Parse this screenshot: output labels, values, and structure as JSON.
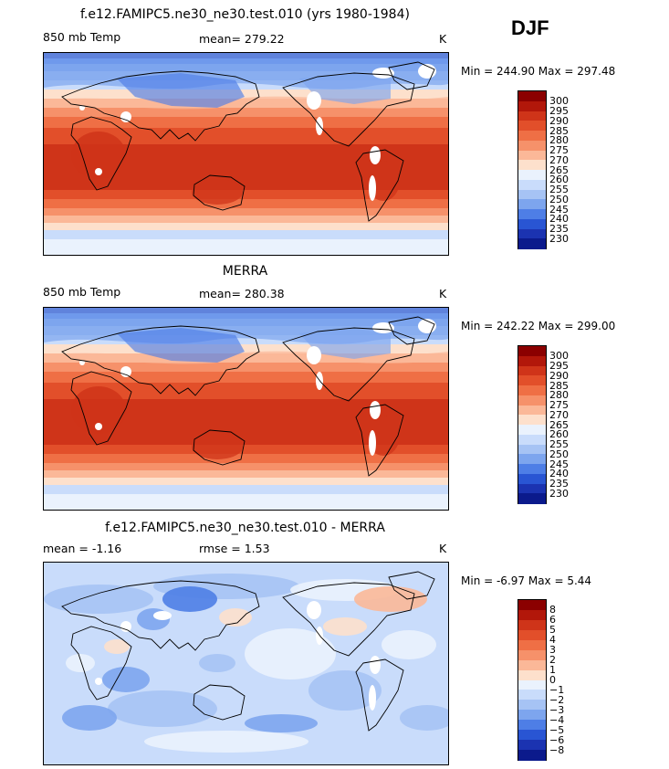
{
  "season": "DJF",
  "panels": [
    {
      "title": "f.e12.FAMIPC5.ne30_ne30.test.010 (yrs 1980-1984)",
      "left_label": "850 mb Temp",
      "mid_label": "mean= 279.22",
      "units": "K",
      "minmax": "Min = 244.90 Max = 297.48",
      "colorbar": {
        "ticks": [
          "300",
          "295",
          "290",
          "285",
          "280",
          "275",
          "270",
          "265",
          "260",
          "255",
          "250",
          "245",
          "240",
          "235",
          "230"
        ],
        "colors": [
          "#8b0000",
          "#b2170a",
          "#cf3419",
          "#e24f2a",
          "#ef6f45",
          "#f6916a",
          "#fbb898",
          "#fde0cc",
          "#eaf2fd",
          "#c9dcfb",
          "#a6c3f4",
          "#7da5ee",
          "#4e7ee6",
          "#2955d3",
          "#1b33b1",
          "#0b1a8c"
        ]
      },
      "field": "temp"
    },
    {
      "title": "MERRA",
      "left_label": "850 mb Temp",
      "mid_label": "mean= 280.38",
      "units": "K",
      "minmax": "Min = 242.22 Max = 299.00",
      "colorbar": {
        "ticks": [
          "300",
          "295",
          "290",
          "285",
          "280",
          "275",
          "270",
          "265",
          "260",
          "255",
          "250",
          "245",
          "240",
          "235",
          "230"
        ],
        "colors": [
          "#8b0000",
          "#b2170a",
          "#cf3419",
          "#e24f2a",
          "#ef6f45",
          "#f6916a",
          "#fbb898",
          "#fde0cc",
          "#eaf2fd",
          "#c9dcfb",
          "#a6c3f4",
          "#7da5ee",
          "#4e7ee6",
          "#2955d3",
          "#1b33b1",
          "#0b1a8c"
        ]
      },
      "field": "temp"
    },
    {
      "title": "f.e12.FAMIPC5.ne30_ne30.test.010 - MERRA",
      "left_label": "mean =   -1.16",
      "mid_label": "rmse =    1.53",
      "units": "K",
      "minmax": "Min =   -6.97 Max =    5.44",
      "colorbar": {
        "ticks": [
          "8",
          "6",
          "5",
          "4",
          "3",
          "2",
          "1",
          "0",
          "−1",
          "−2",
          "−3",
          "−4",
          "−5",
          "−6",
          "−8"
        ],
        "colors": [
          "#8b0000",
          "#b2170a",
          "#cf3419",
          "#e24f2a",
          "#ef6f45",
          "#f6916a",
          "#fbb898",
          "#fde0cc",
          "#eaf2fd",
          "#c9dcfb",
          "#a6c3f4",
          "#7da5ee",
          "#4e7ee6",
          "#2955d3",
          "#1b33b1",
          "#0b1a8c"
        ]
      },
      "field": "diff"
    }
  ]
}
